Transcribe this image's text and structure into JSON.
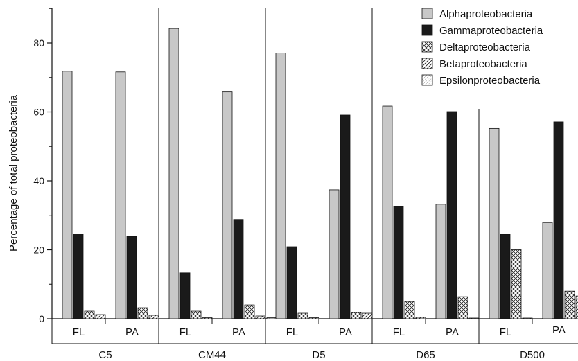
{
  "chart_data": {
    "type": "bar",
    "ylabel": "Percentage of total proteobacteria",
    "ylim": [
      0,
      90
    ],
    "yticks": [
      0,
      20,
      40,
      60,
      80
    ],
    "grid": false,
    "legend_position": "top-right",
    "categories": [
      {
        "group": "C5",
        "fraction": "FL"
      },
      {
        "group": "C5",
        "fraction": "PA"
      },
      {
        "group": "CM44",
        "fraction": "FL"
      },
      {
        "group": "CM44",
        "fraction": "PA"
      },
      {
        "group": "D5",
        "fraction": "FL"
      },
      {
        "group": "D5",
        "fraction": "PA"
      },
      {
        "group": "D65",
        "fraction": "FL"
      },
      {
        "group": "D65",
        "fraction": "PA"
      },
      {
        "group": "D500",
        "fraction": "FL"
      },
      {
        "group": "D500",
        "fraction": "PA"
      }
    ],
    "groups": [
      "C5",
      "CM44",
      "D5",
      "D65",
      "D500"
    ],
    "series": [
      {
        "name": "Alphaproteobacteria",
        "pattern": "solid-light",
        "color": "#c8c8c8",
        "values": [
          71.8,
          71.6,
          84.2,
          65.8,
          77.1,
          37.4,
          61.7,
          33.2,
          55.2,
          27.9
        ]
      },
      {
        "name": "Gammaproteobacteria",
        "pattern": "solid-dark",
        "color": "#1a1a1a",
        "values": [
          24.6,
          23.9,
          13.3,
          28.8,
          20.9,
          59.1,
          32.6,
          60.1,
          24.5,
          57.1
        ]
      },
      {
        "name": "Deltaproteobacteria",
        "pattern": "crosshatch",
        "color": "#ffffff",
        "values": [
          2.2,
          3.2,
          2.2,
          4.0,
          1.6,
          1.8,
          5.0,
          6.4,
          20.0,
          8.0
        ]
      },
      {
        "name": "Betaproteobacteria",
        "pattern": "diagonal",
        "color": "#ffffff",
        "values": [
          1.2,
          1.0,
          0.3,
          0.8,
          0.3,
          1.6,
          0.4,
          0.2,
          0.2,
          6.6
        ]
      },
      {
        "name": "Epsilonproteobacteria",
        "pattern": "dotted",
        "color": "#ffffff",
        "values": [
          0,
          0,
          0,
          0.3,
          0,
          0,
          0,
          0,
          0,
          0
        ]
      }
    ]
  }
}
